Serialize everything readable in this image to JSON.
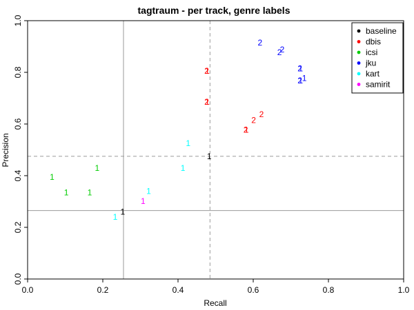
{
  "chart_data": {
    "type": "scatter",
    "title": "tagtraum - per track, genre labels",
    "xlabel": "Recall",
    "ylabel": "Precision",
    "xlim": [
      0,
      1
    ],
    "ylim": [
      0,
      1
    ],
    "x_ticks": [
      "0.0",
      "0.2",
      "0.4",
      "0.6",
      "0.8",
      "1.0"
    ],
    "y_ticks": [
      "0.0",
      "0.2",
      "0.4",
      "0.6",
      "0.8",
      "1.0"
    ],
    "grid": false,
    "legend_position": "top-right",
    "reference_lines": {
      "solid": {
        "x": 0.255,
        "y": 0.265
      },
      "dashed": {
        "x": 0.485,
        "y": 0.475
      }
    },
    "series": [
      {
        "name": "baseline",
        "color": "#000000",
        "points": [
          {
            "x": 0.253,
            "y": 0.26,
            "label": "1"
          },
          {
            "x": 0.483,
            "y": 0.475,
            "label": "1"
          }
        ]
      },
      {
        "name": "dbis",
        "color": "#ff0000",
        "points": [
          {
            "x": 0.476,
            "y": 0.805,
            "label": "2"
          },
          {
            "x": 0.478,
            "y": 0.805,
            "label": "1"
          },
          {
            "x": 0.476,
            "y": 0.685,
            "label": "2"
          },
          {
            "x": 0.478,
            "y": 0.685,
            "label": "1"
          },
          {
            "x": 0.58,
            "y": 0.578,
            "label": "2"
          },
          {
            "x": 0.582,
            "y": 0.578,
            "label": "1"
          },
          {
            "x": 0.601,
            "y": 0.615,
            "label": "2"
          },
          {
            "x": 0.622,
            "y": 0.638,
            "label": "2"
          }
        ]
      },
      {
        "name": "icsi",
        "color": "#00cc00",
        "points": [
          {
            "x": 0.065,
            "y": 0.395,
            "label": "1"
          },
          {
            "x": 0.103,
            "y": 0.335,
            "label": "1"
          },
          {
            "x": 0.165,
            "y": 0.335,
            "label": "1"
          },
          {
            "x": 0.185,
            "y": 0.43,
            "label": "1"
          }
        ]
      },
      {
        "name": "jku",
        "color": "#0000ff",
        "points": [
          {
            "x": 0.618,
            "y": 0.915,
            "label": "2"
          },
          {
            "x": 0.67,
            "y": 0.878,
            "label": "2"
          },
          {
            "x": 0.677,
            "y": 0.888,
            "label": "2"
          },
          {
            "x": 0.724,
            "y": 0.815,
            "label": "2"
          },
          {
            "x": 0.726,
            "y": 0.815,
            "label": "1"
          },
          {
            "x": 0.724,
            "y": 0.768,
            "label": "2"
          },
          {
            "x": 0.726,
            "y": 0.768,
            "label": "1"
          },
          {
            "x": 0.736,
            "y": 0.778,
            "label": "1"
          }
        ]
      },
      {
        "name": "kart",
        "color": "#00ffff",
        "points": [
          {
            "x": 0.233,
            "y": 0.24,
            "label": "1"
          },
          {
            "x": 0.322,
            "y": 0.34,
            "label": "1"
          },
          {
            "x": 0.413,
            "y": 0.43,
            "label": "1"
          },
          {
            "x": 0.427,
            "y": 0.525,
            "label": "1"
          }
        ]
      },
      {
        "name": "samirit",
        "color": "#ff00ff",
        "points": [
          {
            "x": 0.307,
            "y": 0.302,
            "label": "1"
          }
        ]
      }
    ]
  }
}
